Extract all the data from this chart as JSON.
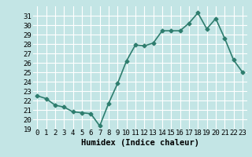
{
  "x": [
    0,
    1,
    2,
    3,
    4,
    5,
    6,
    7,
    8,
    9,
    10,
    11,
    12,
    13,
    14,
    15,
    16,
    17,
    18,
    19,
    20,
    21,
    22,
    23
  ],
  "y": [
    22.5,
    22.2,
    21.5,
    21.3,
    20.8,
    20.7,
    20.6,
    19.3,
    21.7,
    23.8,
    26.2,
    27.9,
    27.8,
    28.1,
    29.4,
    29.4,
    29.4,
    30.2,
    31.3,
    29.6,
    30.7,
    28.6,
    26.3,
    25.0
  ],
  "line_color": "#2e7d6e",
  "marker": "D",
  "marker_size": 2.5,
  "background_color": "#c3e5e5",
  "grid_color": "#ffffff",
  "xlabel": "Humidex (Indice chaleur)",
  "xlabel_fontsize": 7.5,
  "xlim": [
    -0.5,
    23.5
  ],
  "ylim": [
    19,
    32
  ],
  "yticks": [
    19,
    20,
    21,
    22,
    23,
    24,
    25,
    26,
    27,
    28,
    29,
    30,
    31
  ],
  "xticks": [
    0,
    1,
    2,
    3,
    4,
    5,
    6,
    7,
    8,
    9,
    10,
    11,
    12,
    13,
    14,
    15,
    16,
    17,
    18,
    19,
    20,
    21,
    22,
    23
  ],
  "tick_fontsize": 6.5,
  "line_width": 1.2
}
